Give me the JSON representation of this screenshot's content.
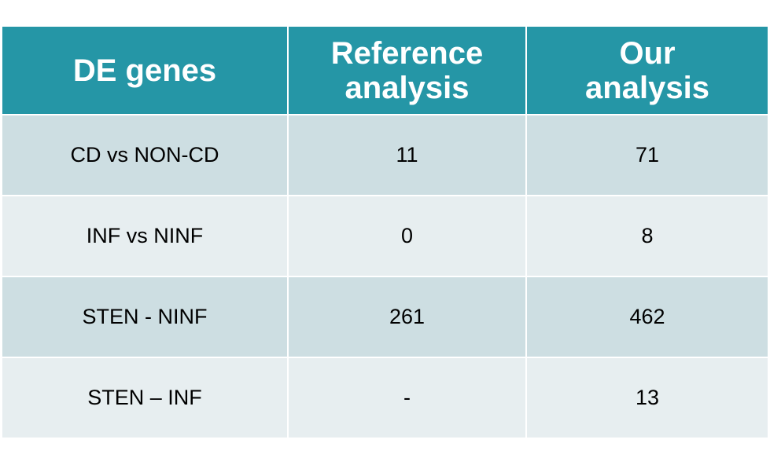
{
  "table": {
    "headers": [
      {
        "line1": "DE genes",
        "line2": ""
      },
      {
        "line1": "Reference",
        "line2": "analysis"
      },
      {
        "line1": "Our",
        "line2": "analysis"
      }
    ],
    "rows": [
      [
        "CD vs NON-CD",
        "11",
        "71"
      ],
      [
        "INF vs NINF",
        "0",
        "8"
      ],
      [
        "STEN - NINF",
        "261",
        "462"
      ],
      [
        "STEN – INF",
        "-",
        "13"
      ]
    ]
  },
  "colors": {
    "header_bg": "#2596a6",
    "header_text": "#ffffff",
    "row_odd_bg": "#cddee2",
    "row_even_bg": "#e7eef0"
  }
}
